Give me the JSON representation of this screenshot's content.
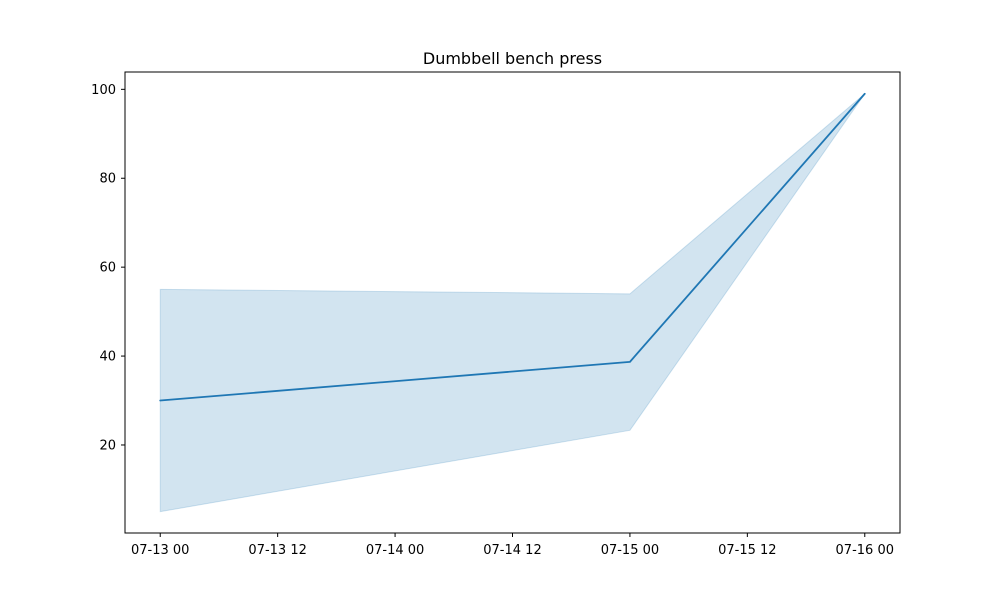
{
  "chart_data": {
    "type": "line",
    "title": "Dumbbell bench press",
    "xlabel": "",
    "ylabel": "",
    "x": [
      "07-13 00",
      "07-15 00",
      "07-16 00"
    ],
    "x_hours": [
      0,
      48,
      72
    ],
    "xlim_hours": [
      -3.6,
      75.6
    ],
    "ylim": [
      0.2,
      103.9
    ],
    "x_ticks": [
      {
        "hours": 0,
        "label": "07-13 00"
      },
      {
        "hours": 12,
        "label": "07-13 12"
      },
      {
        "hours": 24,
        "label": "07-14 00"
      },
      {
        "hours": 36,
        "label": "07-14 12"
      },
      {
        "hours": 48,
        "label": "07-15 00"
      },
      {
        "hours": 60,
        "label": "07-15 12"
      },
      {
        "hours": 72,
        "label": "07-16 00"
      }
    ],
    "y_ticks": [
      20,
      40,
      60,
      80,
      100
    ],
    "series": [
      {
        "values": [
          30.0,
          38.7,
          99.0
        ],
        "lower": [
          5.0,
          23.3,
          99.0
        ],
        "upper": [
          55.0,
          54.0,
          99.0
        ]
      }
    ],
    "grid": false,
    "colors": {
      "line": "#1f77b4",
      "band": "#1f77b4"
    }
  }
}
